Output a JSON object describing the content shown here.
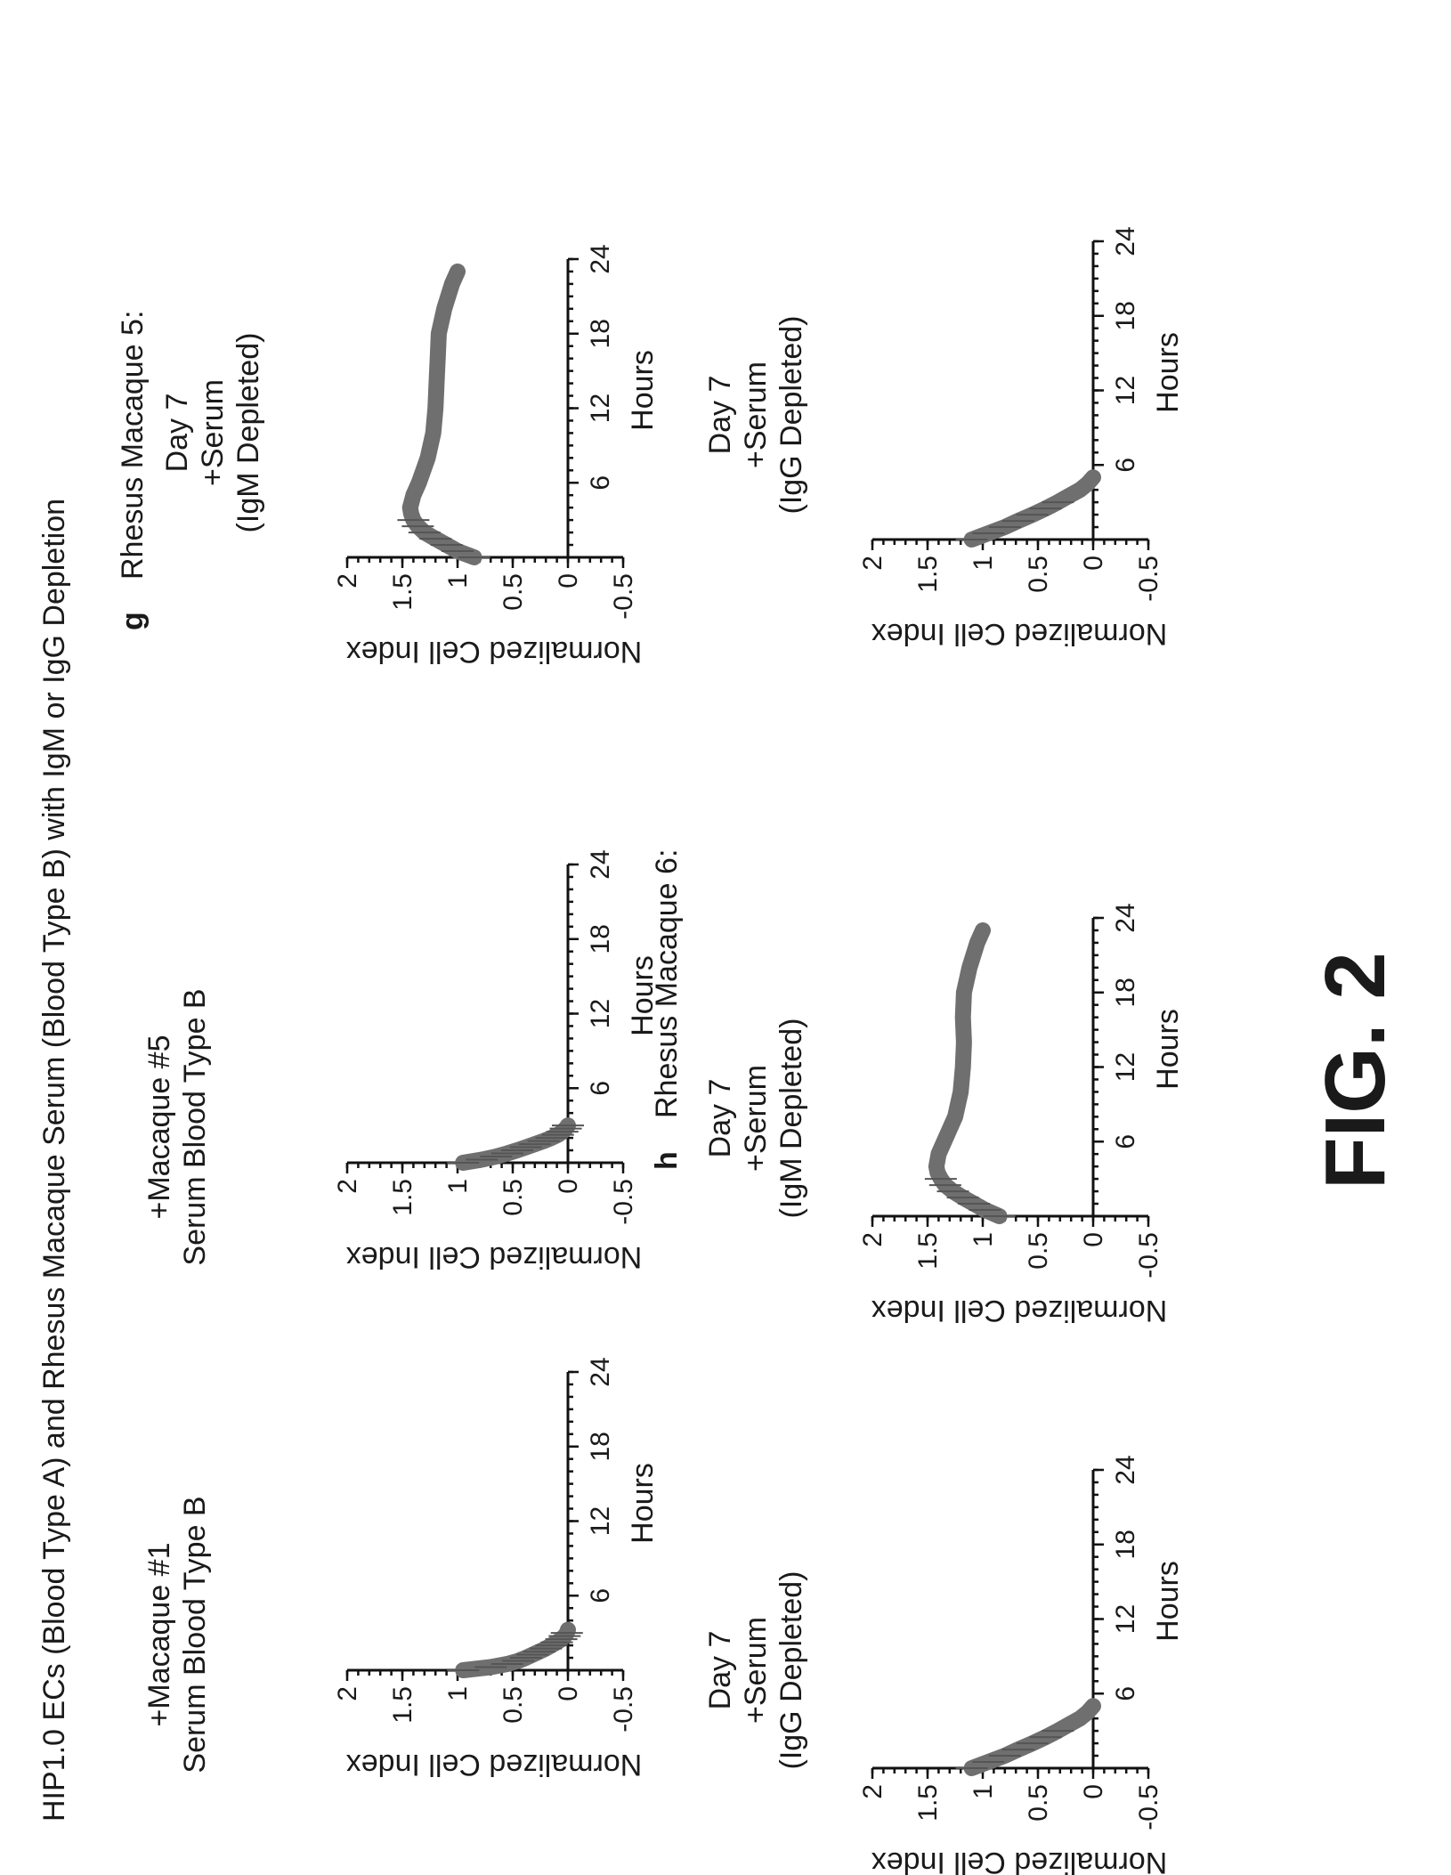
{
  "figure": {
    "title": "HIP1.0 ECs (Blood Type A) and Rhesus Macaque Serum (Blood Type B) with IgM or IgG Depletion",
    "figure_label": "FIG. 2",
    "panel_letters": [
      "g",
      "h"
    ],
    "row_headers": [
      "Rhesus Macaque 5:",
      "Rhesus Macaque 6:"
    ]
  },
  "chart_data": [
    {
      "type": "line",
      "title_lines": [
        "+Macaque #1",
        "Serum Blood Type B"
      ],
      "xlabel": "Hours",
      "ylabel": "Normalized Cell Index",
      "xlim": [
        0,
        24
      ],
      "ylim": [
        -0.5,
        2
      ],
      "xticks": [
        "6",
        "12",
        "18",
        "24"
      ],
      "yticks": [
        "2",
        "1.5",
        "1",
        "0.5",
        "0",
        "-0.5"
      ],
      "series": [
        {
          "x": [
            0,
            0.25,
            0.5,
            0.75,
            1,
            1.25,
            1.5,
            1.75,
            2,
            2.25,
            2.5,
            2.75,
            3,
            3.25
          ],
          "values": [
            0.95,
            0.7,
            0.55,
            0.45,
            0.38,
            0.32,
            0.26,
            0.2,
            0.15,
            0.1,
            0.06,
            0.03,
            0.01,
            0
          ]
        }
      ]
    },
    {
      "type": "line",
      "title_lines": [
        "+Macaque #5",
        "Serum Blood Type B"
      ],
      "xlabel": "Hours",
      "ylabel": "Normalized Cell Index",
      "xlim": [
        0,
        24
      ],
      "ylim": [
        -0.5,
        2
      ],
      "xticks": [
        "6",
        "12",
        "18",
        "24"
      ],
      "yticks": [
        "2",
        "1.5",
        "1",
        "0.5",
        "0",
        "-0.5"
      ],
      "series": [
        {
          "x": [
            0,
            0.25,
            0.5,
            0.75,
            1,
            1.25,
            1.5,
            1.75,
            2,
            2.25,
            2.5,
            2.75,
            3
          ],
          "values": [
            0.95,
            0.78,
            0.65,
            0.55,
            0.46,
            0.38,
            0.3,
            0.22,
            0.15,
            0.09,
            0.05,
            0.02,
            0
          ]
        }
      ]
    },
    {
      "type": "line",
      "title_lines": [
        "Day 7",
        "+Serum",
        "(IgM Depleted)"
      ],
      "xlabel": "Hours",
      "ylabel": "Normalized Cell Index",
      "xlim": [
        0,
        24
      ],
      "ylim": [
        -0.5,
        2
      ],
      "xticks": [
        "6",
        "12",
        "18",
        "24"
      ],
      "yticks": [
        "2",
        "1.5",
        "1",
        "0.5",
        "0",
        "-0.5"
      ],
      "series": [
        {
          "x": [
            0,
            0.5,
            1,
            1.5,
            2,
            2.5,
            3,
            3.5,
            4,
            5,
            6,
            8,
            10,
            12,
            14,
            16,
            18,
            20,
            22,
            23
          ],
          "values": [
            0.85,
            1.0,
            1.1,
            1.2,
            1.3,
            1.36,
            1.4,
            1.42,
            1.43,
            1.4,
            1.35,
            1.27,
            1.22,
            1.2,
            1.19,
            1.18,
            1.17,
            1.12,
            1.05,
            1.0
          ]
        }
      ]
    },
    {
      "type": "line",
      "title_lines": [
        "Day 7",
        "+Serum",
        "(IgG Depleted)"
      ],
      "xlabel": "Hours",
      "ylabel": "Normalized Cell Index",
      "xlim": [
        0,
        24
      ],
      "ylim": [
        -0.5,
        2
      ],
      "xticks": [
        "6",
        "12",
        "18",
        "24"
      ],
      "yticks": [
        "2",
        "1.5",
        "1",
        "0.5",
        "0",
        "-0.5"
      ],
      "series": [
        {
          "x": [
            0,
            0.5,
            1,
            1.5,
            2,
            2.5,
            3,
            3.5,
            4,
            4.5,
            5
          ],
          "values": [
            1.1,
            0.95,
            0.8,
            0.68,
            0.55,
            0.43,
            0.32,
            0.22,
            0.12,
            0.05,
            0
          ]
        }
      ]
    },
    {
      "type": "line",
      "title_lines": [
        "Day 7",
        "+Serum",
        "(IgM Depleted)"
      ],
      "xlabel": "Hours",
      "ylabel": "Normalized Cell Index",
      "xlim": [
        0,
        24
      ],
      "ylim": [
        -0.5,
        2
      ],
      "xticks": [
        "6",
        "12",
        "18",
        "24"
      ],
      "yticks": [
        "2",
        "1.5",
        "1",
        "0.5",
        "0",
        "-0.5"
      ],
      "series": [
        {
          "x": [
            0,
            0.5,
            1,
            1.5,
            2,
            2.5,
            3,
            3.5,
            4,
            5,
            6,
            8,
            10,
            12,
            14,
            16,
            18,
            20,
            22,
            23
          ],
          "values": [
            0.85,
            0.98,
            1.08,
            1.18,
            1.27,
            1.34,
            1.38,
            1.41,
            1.42,
            1.4,
            1.35,
            1.25,
            1.2,
            1.18,
            1.17,
            1.18,
            1.17,
            1.12,
            1.05,
            1.0
          ]
        }
      ]
    },
    {
      "type": "line",
      "title_lines": [
        "Day 7",
        "+Serum",
        "(IgG Depleted)"
      ],
      "xlabel": "Hours",
      "ylabel": "Normalized Cell Index",
      "xlim": [
        0,
        24
      ],
      "ylim": [
        -0.5,
        2
      ],
      "xticks": [
        "6",
        "12",
        "18",
        "24"
      ],
      "yticks": [
        "2",
        "1.5",
        "1",
        "0.5",
        "0",
        "-0.5"
      ],
      "series": [
        {
          "x": [
            0,
            0.5,
            1,
            1.5,
            2,
            2.5,
            3,
            3.5,
            4,
            4.5,
            5
          ],
          "values": [
            1.1,
            0.95,
            0.8,
            0.68,
            0.55,
            0.43,
            0.32,
            0.22,
            0.12,
            0.05,
            0
          ]
        }
      ]
    }
  ]
}
